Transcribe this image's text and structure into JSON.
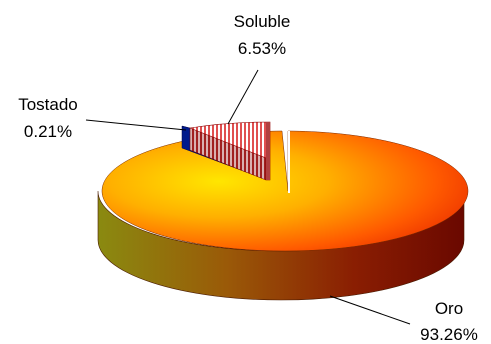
{
  "chart_data": {
    "type": "pie",
    "style": "3d-exploded",
    "title": "",
    "slices": [
      {
        "label": "Oro",
        "percent_label": "93.26%",
        "value": 93.26,
        "color": "#ff6a00"
      },
      {
        "label": "Soluble",
        "percent_label": "6.53%",
        "value": 6.53,
        "color": "#e06060",
        "pattern": "vertical-stripes"
      },
      {
        "label": "Tostado",
        "percent_label": "0.21%",
        "value": 0.21,
        "color": "#001a8c"
      }
    ],
    "legend": "none"
  }
}
